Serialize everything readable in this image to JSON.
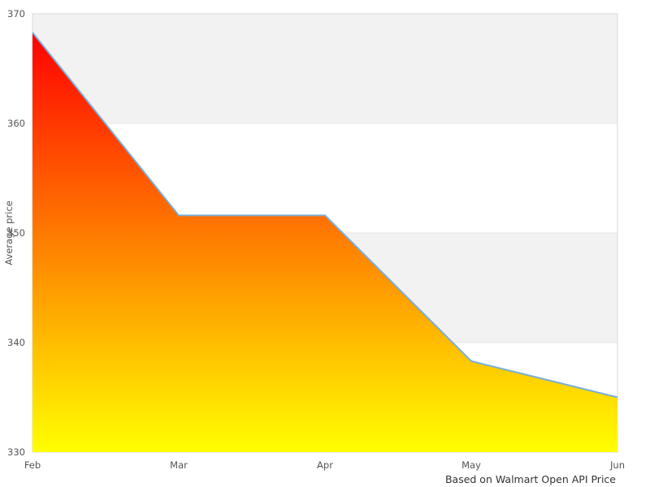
{
  "chart_data": {
    "type": "area",
    "x": [
      "Feb",
      "Mar",
      "Apr",
      "May",
      "Jun"
    ],
    "values": [
      368.3,
      351.6,
      351.6,
      338.3,
      335.0
    ],
    "series_name": "Average price",
    "title": "",
    "xlabel": "",
    "ylabel": "Average price",
    "caption": "Based on Walmart Open API Price",
    "ylim": [
      330,
      370
    ],
    "yticks": [
      330,
      340,
      350,
      360,
      370
    ],
    "legend": "none",
    "grid": "alternating horizontal bands, gray on 340-350 and 360-370",
    "colors": {
      "area_gradient_top": "#ff0000",
      "area_gradient_bottom": "#ffff00",
      "line": "#79aed7",
      "band_gray": "#f2f2f2",
      "gridline": "#e5e5e5",
      "plot_border": "#d9d9d9",
      "tick_text": "#555555",
      "caption_text": "#333333",
      "background": "#ffffff"
    }
  }
}
